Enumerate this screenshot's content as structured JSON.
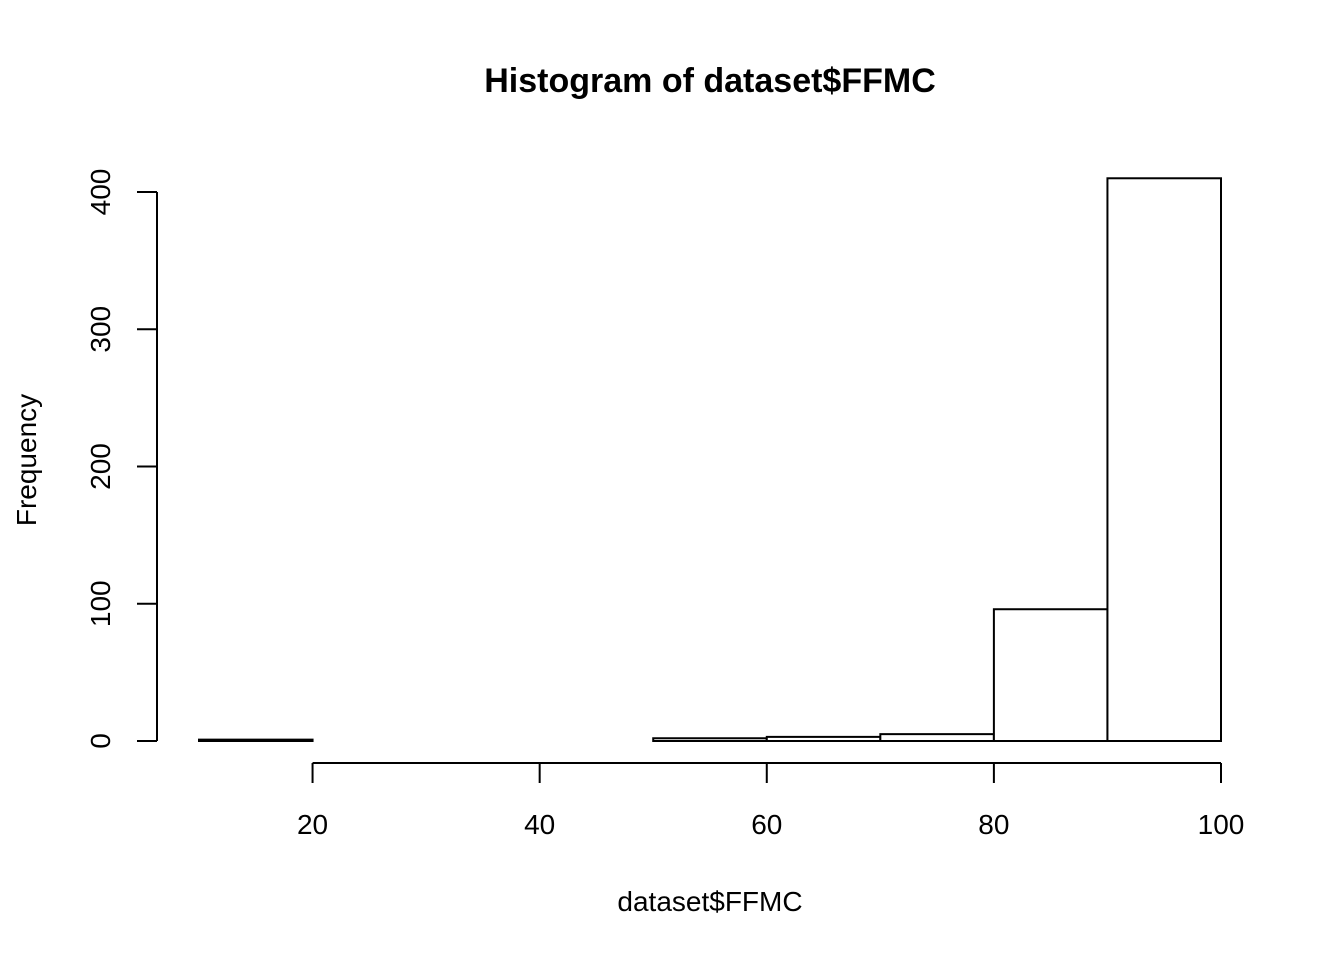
{
  "chart_data": {
    "type": "bar",
    "title": "Histogram of dataset$FFMC",
    "xlabel": "dataset$FFMC",
    "ylabel": "Frequency",
    "bins": [
      {
        "from": 10,
        "to": 20,
        "count": 1
      },
      {
        "from": 20,
        "to": 30,
        "count": 0
      },
      {
        "from": 30,
        "to": 40,
        "count": 0
      },
      {
        "from": 40,
        "to": 50,
        "count": 0
      },
      {
        "from": 50,
        "to": 60,
        "count": 2
      },
      {
        "from": 60,
        "to": 70,
        "count": 3
      },
      {
        "from": 70,
        "to": 80,
        "count": 5
      },
      {
        "from": 80,
        "to": 90,
        "count": 96
      },
      {
        "from": 90,
        "to": 100,
        "count": 410
      }
    ],
    "xlim": [
      10,
      100
    ],
    "ylim": [
      0,
      410
    ],
    "x_ticks": [
      20,
      40,
      60,
      80,
      100
    ],
    "y_ticks": [
      0,
      100,
      200,
      300,
      400
    ],
    "x_tick_labels": [
      "20",
      "40",
      "60",
      "80",
      "100"
    ],
    "y_tick_labels": [
      "0",
      "100",
      "200",
      "300",
      "400"
    ],
    "grid": false,
    "legend": "none",
    "colors": {
      "bar_fill": "#ffffff",
      "bar_stroke": "#000000"
    }
  }
}
